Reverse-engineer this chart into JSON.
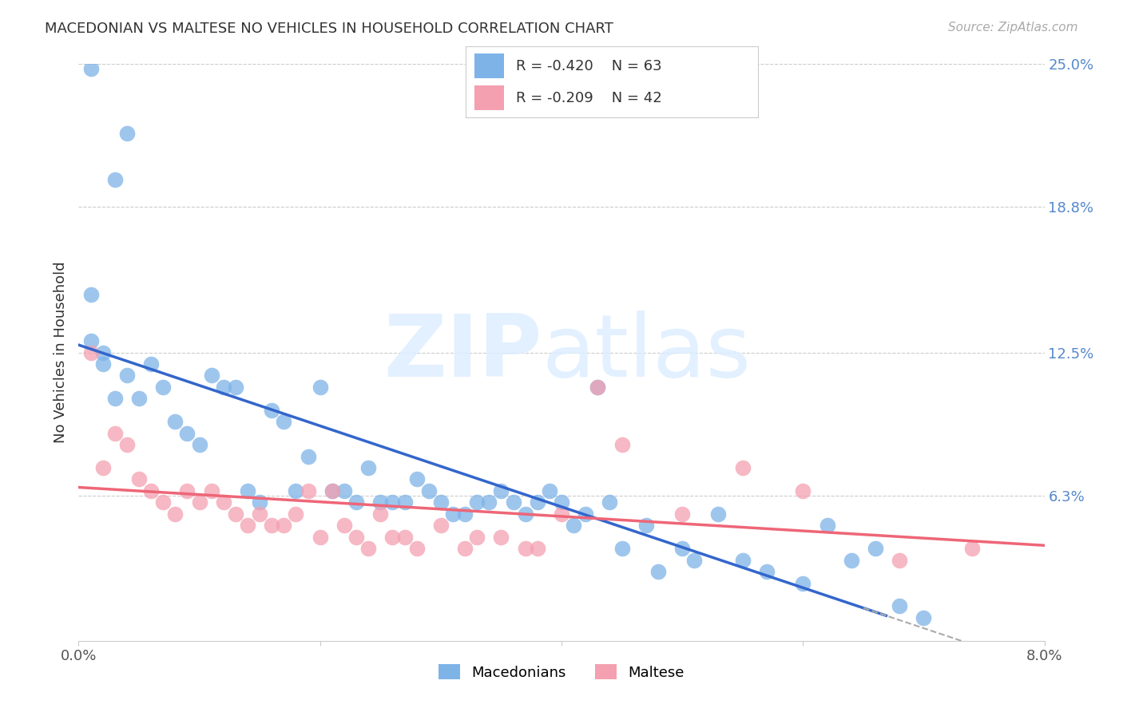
{
  "title": "MACEDONIAN VS MALTESE NO VEHICLES IN HOUSEHOLD CORRELATION CHART",
  "source": "Source: ZipAtlas.com",
  "xlabel": "",
  "ylabel": "No Vehicles in Household",
  "x_min": 0.0,
  "x_max": 0.08,
  "y_min": 0.0,
  "y_max": 0.25,
  "x_ticks": [
    0.0,
    0.02,
    0.04,
    0.06,
    0.08
  ],
  "x_tick_labels": [
    "0.0%",
    "",
    "",
    "",
    "8.0%"
  ],
  "y_tick_labels_right": [
    "6.3%",
    "12.5%",
    "18.8%",
    "25.0%"
  ],
  "y_tick_values_right": [
    0.063,
    0.125,
    0.188,
    0.25
  ],
  "grid_color": "#cccccc",
  "background_color": "#ffffff",
  "macedonians_color": "#7eb3e8",
  "maltese_color": "#f4a0b0",
  "trendline_mac_color": "#3366cc",
  "trendline_mal_color": "#ee6677",
  "legend_R_mac": "R = -0.420",
  "legend_N_mac": "N = 63",
  "legend_R_mal": "R = -0.209",
  "legend_N_mal": "N = 42",
  "macedonians_x": [
    0.001,
    0.004,
    0.001,
    0.003,
    0.001,
    0.002,
    0.002,
    0.003,
    0.004,
    0.005,
    0.006,
    0.007,
    0.008,
    0.009,
    0.01,
    0.011,
    0.012,
    0.013,
    0.014,
    0.015,
    0.016,
    0.017,
    0.018,
    0.019,
    0.02,
    0.021,
    0.022,
    0.023,
    0.024,
    0.025,
    0.026,
    0.027,
    0.028,
    0.029,
    0.03,
    0.031,
    0.032,
    0.033,
    0.034,
    0.035,
    0.036,
    0.037,
    0.038,
    0.039,
    0.04,
    0.041,
    0.042,
    0.043,
    0.044,
    0.045,
    0.047,
    0.048,
    0.05,
    0.051,
    0.053,
    0.055,
    0.057,
    0.06,
    0.062,
    0.064,
    0.066,
    0.068,
    0.07
  ],
  "macedonians_y": [
    0.248,
    0.22,
    0.15,
    0.105,
    0.13,
    0.125,
    0.12,
    0.2,
    0.115,
    0.105,
    0.12,
    0.11,
    0.095,
    0.09,
    0.085,
    0.115,
    0.11,
    0.11,
    0.065,
    0.06,
    0.1,
    0.095,
    0.065,
    0.08,
    0.11,
    0.065,
    0.065,
    0.06,
    0.075,
    0.06,
    0.06,
    0.06,
    0.07,
    0.065,
    0.06,
    0.055,
    0.055,
    0.06,
    0.06,
    0.065,
    0.06,
    0.055,
    0.06,
    0.065,
    0.06,
    0.05,
    0.055,
    0.11,
    0.06,
    0.04,
    0.05,
    0.03,
    0.04,
    0.035,
    0.055,
    0.035,
    0.03,
    0.025,
    0.05,
    0.035,
    0.04,
    0.015,
    0.01
  ],
  "maltese_x": [
    0.001,
    0.002,
    0.003,
    0.004,
    0.005,
    0.006,
    0.007,
    0.008,
    0.009,
    0.01,
    0.011,
    0.012,
    0.013,
    0.014,
    0.015,
    0.016,
    0.017,
    0.018,
    0.019,
    0.02,
    0.021,
    0.022,
    0.023,
    0.024,
    0.025,
    0.026,
    0.027,
    0.028,
    0.03,
    0.032,
    0.033,
    0.035,
    0.037,
    0.038,
    0.04,
    0.043,
    0.045,
    0.05,
    0.055,
    0.06,
    0.068,
    0.074
  ],
  "maltese_y": [
    0.125,
    0.075,
    0.09,
    0.085,
    0.07,
    0.065,
    0.06,
    0.055,
    0.065,
    0.06,
    0.065,
    0.06,
    0.055,
    0.05,
    0.055,
    0.05,
    0.05,
    0.055,
    0.065,
    0.045,
    0.065,
    0.05,
    0.045,
    0.04,
    0.055,
    0.045,
    0.045,
    0.04,
    0.05,
    0.04,
    0.045,
    0.045,
    0.04,
    0.04,
    0.055,
    0.11,
    0.085,
    0.055,
    0.075,
    0.065,
    0.035,
    0.04
  ]
}
